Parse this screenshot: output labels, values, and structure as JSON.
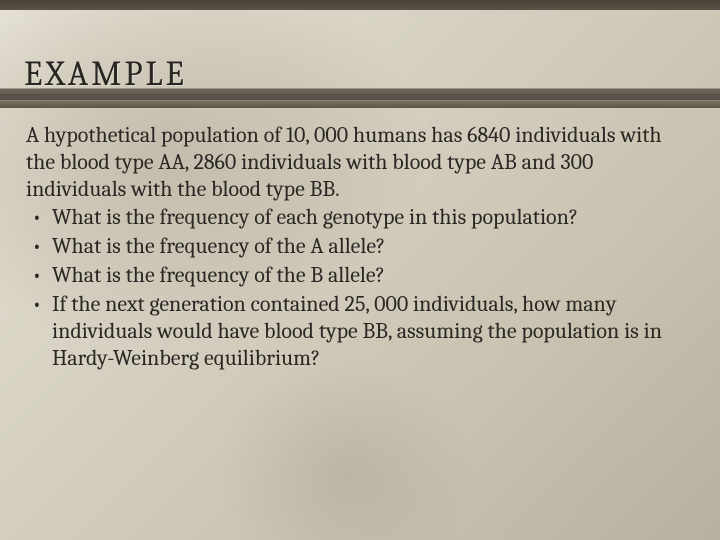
{
  "colors": {
    "top_border": "#4a4038",
    "title_underline": "#6a6258",
    "text": "#2c2824",
    "bg_light": "#e8e4d8",
    "bg_dark": "#b8b0a0"
  },
  "typography": {
    "title_fontsize": 34,
    "title_letter_spacing": 3,
    "body_fontsize": 22,
    "body_line_height": 1.22,
    "font_family": "Cambria / Georgia serif"
  },
  "title": "EXAMPLE",
  "intro": "A hypothetical population of 10, 000 humans has 6840 individuals with the blood type AA, 2860 individuals with blood type AB and 300 individuals with the blood type BB.",
  "bullets": [
    "What is the frequency of each genotype in this population?",
    "What is the frequency of the A allele?",
    "What is the frequency of the B allele?",
    "If the next generation contained 25, 000 individuals, how many individuals would have blood type BB, assuming the population is in Hardy-Weinberg equilibrium?"
  ]
}
